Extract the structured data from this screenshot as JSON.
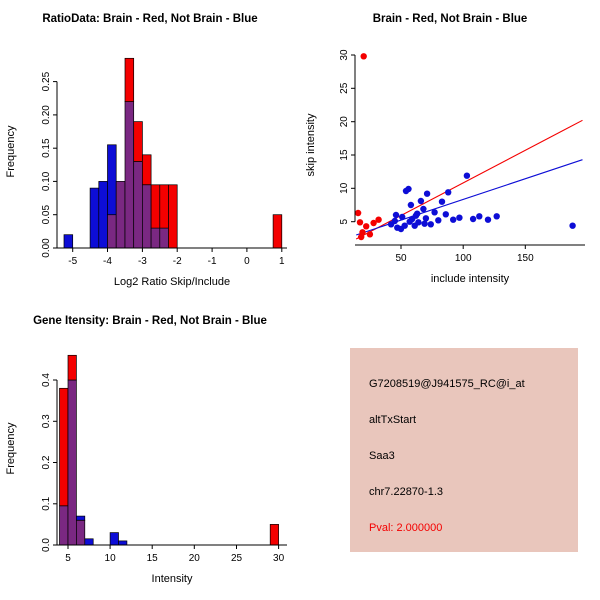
{
  "colors": {
    "red": "#F40000",
    "blue": "#0D0DD6",
    "purple": "#7A2882",
    "info_bg": "#E9C6BC",
    "background": "#FFFFFF",
    "axis": "#000000"
  },
  "chart_data": [
    {
      "type": "histogram",
      "title": "RatioData: Brain - Red, Not Brain - Blue",
      "xlabel": "Log2 Ratio Skip/Include",
      "ylabel": "Frequency",
      "legend_note": "Brain - Red, Not Brain - Blue",
      "xlim": [
        -5.45,
        1.15
      ],
      "ylim": [
        0,
        0.29
      ],
      "xticks": [
        -5,
        -4,
        -3,
        -2,
        -1,
        0,
        1
      ],
      "xtick_labels": [
        "-5",
        "-4",
        "-3",
        "-2",
        "-1",
        "0",
        "1"
      ],
      "yticks": [
        0,
        0.05,
        0.1,
        0.15,
        0.2,
        0.25
      ],
      "ytick_labels": [
        "0.00",
        "0.05",
        "0.10",
        "0.15",
        "0.20",
        "0.25"
      ],
      "bin_width": 0.25,
      "bars": [
        {
          "x0": -5.25,
          "x1": -5.0,
          "blue": 0.02,
          "red": 0
        },
        {
          "x0": -4.5,
          "x1": -4.25,
          "blue": 0.09,
          "red": 0
        },
        {
          "x0": -4.25,
          "x1": -4.0,
          "blue": 0.1,
          "red": 0
        },
        {
          "x0": -4.0,
          "x1": -3.75,
          "blue": 0.155,
          "red": 0.05
        },
        {
          "x0": -3.75,
          "x1": -3.5,
          "blue": 0.1,
          "red": 0.1
        },
        {
          "x0": -3.5,
          "x1": -3.25,
          "blue": 0.22,
          "red": 0.285
        },
        {
          "x0": -3.25,
          "x1": -3.0,
          "blue": 0.13,
          "red": 0.19
        },
        {
          "x0": -3.0,
          "x1": -2.75,
          "blue": 0.095,
          "red": 0.14
        },
        {
          "x0": -2.75,
          "x1": -2.5,
          "blue": 0.03,
          "red": 0.095
        },
        {
          "x0": -2.5,
          "x1": -2.25,
          "blue": 0.03,
          "red": 0.095
        },
        {
          "x0": -2.25,
          "x1": -2.0,
          "blue": 0,
          "red": 0.095
        },
        {
          "x0": 0.75,
          "x1": 1.0,
          "blue": 0,
          "red": 0.05
        }
      ]
    },
    {
      "type": "scatter",
      "title": "Brain - Red, Not Brain - Blue",
      "xlabel": "include intensity",
      "ylabel": "skip intensity",
      "xlim": [
        13,
        198
      ],
      "ylim": [
        1.5,
        31.5
      ],
      "xticks": [
        50,
        100,
        150
      ],
      "xtick_labels": [
        "50",
        "100",
        "150"
      ],
      "yticks": [
        5,
        10,
        15,
        20,
        25,
        30
      ],
      "ytick_labels": [
        "5",
        "10",
        "15",
        "20",
        "25",
        "30"
      ],
      "points": {
        "red": [
          [
            20,
            29.8
          ],
          [
            15.5,
            6.3
          ],
          [
            17,
            4.9
          ],
          [
            19,
            3.4
          ],
          [
            22,
            4.3
          ],
          [
            25,
            3.1
          ],
          [
            28,
            4.8
          ],
          [
            32,
            5.3
          ],
          [
            18,
            2.7
          ]
        ],
        "blue": [
          [
            42,
            4.6
          ],
          [
            45,
            5.1
          ],
          [
            46,
            6.0
          ],
          [
            47,
            4.1
          ],
          [
            50,
            3.9
          ],
          [
            51,
            5.7
          ],
          [
            53,
            4.4
          ],
          [
            54,
            9.6
          ],
          [
            56,
            9.9
          ],
          [
            57,
            5.0
          ],
          [
            58,
            7.5
          ],
          [
            59,
            5.4
          ],
          [
            61,
            4.4
          ],
          [
            62,
            5.9
          ],
          [
            63,
            6.2
          ],
          [
            64,
            4.9
          ],
          [
            66,
            8.1
          ],
          [
            68,
            6.9
          ],
          [
            69,
            4.7
          ],
          [
            70,
            5.5
          ],
          [
            71,
            9.2
          ],
          [
            74,
            4.6
          ],
          [
            77,
            6.4
          ],
          [
            80,
            5.2
          ],
          [
            83,
            8.0
          ],
          [
            86,
            6.1
          ],
          [
            88,
            9.4
          ],
          [
            92,
            5.3
          ],
          [
            97,
            5.6
          ],
          [
            103,
            11.9
          ],
          [
            108,
            5.4
          ],
          [
            113,
            5.8
          ],
          [
            120,
            5.3
          ],
          [
            127,
            5.8
          ],
          [
            188,
            4.4
          ]
        ]
      },
      "lines": [
        {
          "color": "red",
          "x1": 14,
          "y1": 2.4,
          "x2": 196,
          "y2": 20.2
        },
        {
          "color": "blue",
          "x1": 14,
          "y1": 3.0,
          "x2": 196,
          "y2": 14.3
        }
      ]
    },
    {
      "type": "histogram",
      "title": "Gene Itensity: Brain - Red, Not Brain - Blue",
      "xlabel": "Intensity",
      "ylabel": "Frequency",
      "legend_note": "Brain - Red, Not Brain - Blue",
      "xlim": [
        3.7,
        31
      ],
      "ylim": [
        0,
        0.468
      ],
      "xticks": [
        5,
        10,
        15,
        20,
        25,
        30
      ],
      "xtick_labels": [
        "5",
        "10",
        "15",
        "20",
        "25",
        "30"
      ],
      "yticks": [
        0,
        0.1,
        0.2,
        0.3,
        0.4
      ],
      "ytick_labels": [
        "0.0",
        "0.1",
        "0.2",
        "0.3",
        "0.4"
      ],
      "bin_width": 1,
      "bars": [
        {
          "x0": 4,
          "x1": 5,
          "red": 0.38,
          "blue": 0.095
        },
        {
          "x0": 5,
          "x1": 6,
          "red": 0.46,
          "blue": 0.4
        },
        {
          "x0": 6,
          "x1": 7,
          "red": 0.06,
          "blue": 0.07
        },
        {
          "x0": 7,
          "x1": 8,
          "red": 0,
          "blue": 0.015
        },
        {
          "x0": 10,
          "x1": 11,
          "red": 0,
          "blue": 0.03
        },
        {
          "x0": 11,
          "x1": 12,
          "red": 0,
          "blue": 0.01
        },
        {
          "x0": 29,
          "x1": 30,
          "red": 0.05,
          "blue": 0
        }
      ]
    }
  ],
  "info_box": {
    "probe_id": "G7208519@J941575_RC@i_at",
    "event_type": "altTxStart",
    "gene": "Saa3",
    "location": "chr7.22870-1.3",
    "pval": "Pval: 2.000000"
  }
}
